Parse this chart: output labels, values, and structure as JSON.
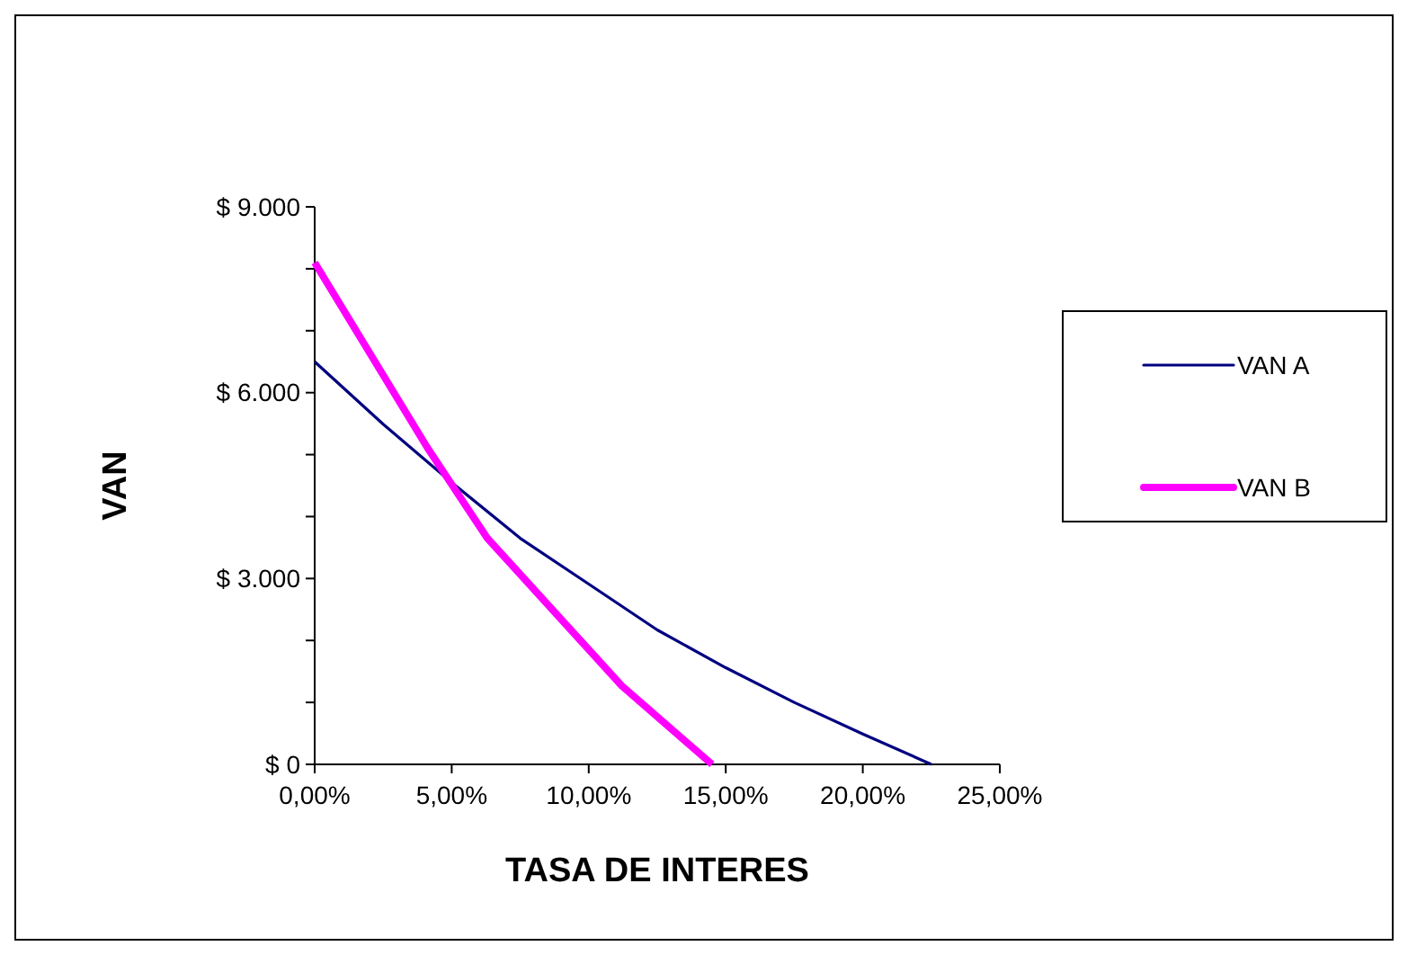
{
  "chart_data": {
    "type": "line",
    "xlabel": "TASA DE INTERES",
    "ylabel": "VAN",
    "xlim": [
      0,
      25
    ],
    "xticks": [
      {
        "value": 0,
        "label": "0,00%"
      },
      {
        "value": 5,
        "label": "5,00%"
      },
      {
        "value": 10,
        "label": "10,00%"
      },
      {
        "value": 15,
        "label": "15,00%"
      },
      {
        "value": 20,
        "label": "20,00%"
      },
      {
        "value": 25,
        "label": "25,00%"
      }
    ],
    "ylim": [
      0,
      9000
    ],
    "yticks": [
      {
        "value": 0,
        "label": "$ 0"
      },
      {
        "value": 1000,
        "label": null
      },
      {
        "value": 2000,
        "label": null
      },
      {
        "value": 3000,
        "label": "$ 3.000"
      },
      {
        "value": 4000,
        "label": null
      },
      {
        "value": 5000,
        "label": null
      },
      {
        "value": 6000,
        "label": "$ 6.000"
      },
      {
        "value": 7000,
        "label": null
      },
      {
        "value": 8000,
        "label": null
      },
      {
        "value": 9000,
        "label": "$ 9.000"
      }
    ],
    "grid": false,
    "legend": "right",
    "series": [
      {
        "name": "VAN A",
        "color": "#000080",
        "x": [
          0,
          2.5,
          5,
          7.5,
          10,
          12.5,
          15,
          17.5,
          20,
          22.5
        ],
        "values": [
          6500,
          5490,
          4550,
          3650,
          2910,
          2170,
          1560,
          1000,
          490,
          0
        ]
      },
      {
        "name": "VAN B",
        "color": "#ff00ff",
        "x": [
          0,
          4.1,
          6.3,
          11.2,
          14.5
        ],
        "values": [
          8100,
          5120,
          3650,
          1270,
          0
        ]
      }
    ]
  }
}
